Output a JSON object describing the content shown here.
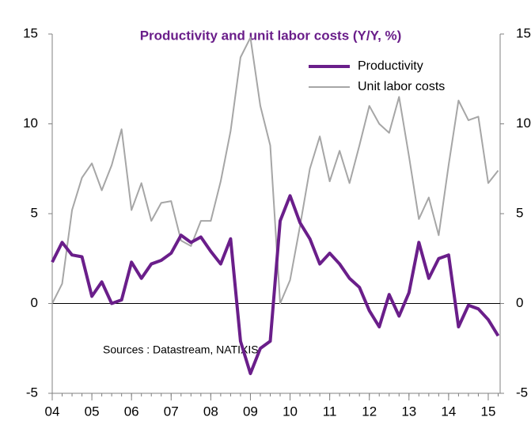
{
  "chart_data": {
    "type": "line",
    "title": "Productivity and unit labor costs (Y/Y, %)",
    "annotation": "Sources : Datastream, NATIXIS",
    "x": [
      2004,
      2004.25,
      2004.5,
      2004.75,
      2005,
      2005.25,
      2005.5,
      2005.75,
      2006,
      2006.25,
      2006.5,
      2006.75,
      2007,
      2007.25,
      2007.5,
      2007.75,
      2008,
      2008.25,
      2008.5,
      2008.75,
      2009,
      2009.25,
      2009.5,
      2009.75,
      2010,
      2010.25,
      2010.5,
      2010.75,
      2011,
      2011.25,
      2011.5,
      2011.75,
      2012,
      2012.25,
      2012.5,
      2012.75,
      2013,
      2013.25,
      2013.5,
      2013.75,
      2014,
      2014.25,
      2014.5,
      2014.75,
      2015,
      2015.25
    ],
    "series": [
      {
        "name": "Productivity",
        "color": "#6a1e8a",
        "width": 4,
        "values": [
          2.3,
          3.4,
          2.7,
          2.6,
          0.4,
          1.2,
          0.0,
          0.2,
          2.3,
          1.4,
          2.2,
          2.4,
          2.8,
          3.8,
          3.4,
          3.7,
          2.9,
          2.2,
          3.6,
          -2.1,
          -3.9,
          -2.5,
          -2.1,
          4.6,
          6.0,
          4.5,
          3.6,
          2.2,
          2.8,
          2.2,
          1.4,
          0.9,
          -0.4,
          -1.3,
          0.5,
          -0.7,
          0.6,
          3.4,
          1.4,
          2.5,
          2.7,
          -1.3,
          -0.1,
          -0.3,
          -0.9,
          -1.8
        ]
      },
      {
        "name": "Unit labor costs",
        "color": "#a6a6a6",
        "width": 2,
        "values": [
          0.0,
          1.1,
          5.2,
          7.0,
          7.8,
          6.3,
          7.7,
          9.7,
          5.2,
          6.7,
          4.6,
          5.6,
          5.7,
          3.5,
          3.2,
          4.6,
          4.6,
          6.8,
          9.6,
          13.7,
          14.8,
          11.0,
          8.8,
          0.0,
          1.3,
          4.3,
          7.5,
          9.3,
          6.8,
          8.5,
          6.7,
          8.8,
          11.0,
          10.0,
          9.5,
          11.5,
          8.2,
          4.7,
          5.9,
          3.8,
          7.7,
          11.3,
          10.2,
          10.4,
          6.7,
          7.4
        ]
      }
    ],
    "xlim": [
      2004,
      2015.3
    ],
    "xticks": [
      {
        "value": 2004,
        "label": "04"
      },
      {
        "value": 2005,
        "label": "05"
      },
      {
        "value": 2006,
        "label": "06"
      },
      {
        "value": 2007,
        "label": "07"
      },
      {
        "value": 2008,
        "label": "08"
      },
      {
        "value": 2009,
        "label": "09"
      },
      {
        "value": 2010,
        "label": "10"
      },
      {
        "value": 2011,
        "label": "11"
      },
      {
        "value": 2012,
        "label": "12"
      },
      {
        "value": 2013,
        "label": "13"
      },
      {
        "value": 2014,
        "label": "14"
      },
      {
        "value": 2015,
        "label": "15"
      }
    ],
    "ylim": [
      -5,
      15
    ],
    "yticks": [
      -5,
      0,
      5,
      10,
      15
    ],
    "y2lim": [
      -5,
      15
    ],
    "y2ticks": [
      -5,
      0,
      5,
      10,
      15
    ],
    "legend": "upper right"
  }
}
